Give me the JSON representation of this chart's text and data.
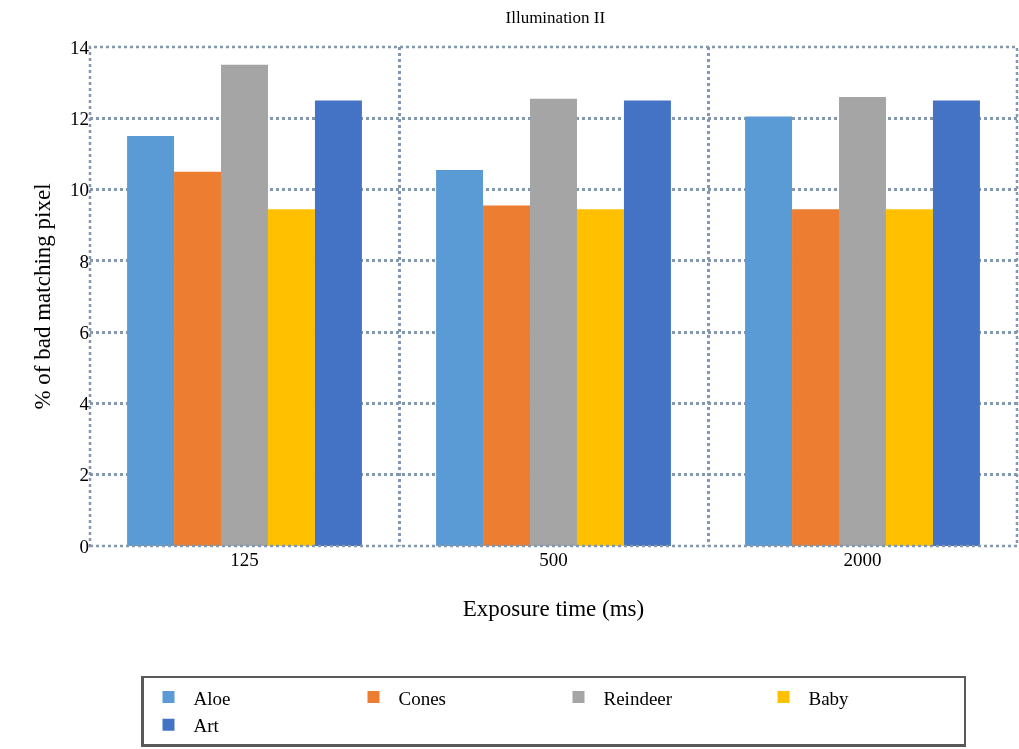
{
  "chart_data": {
    "type": "bar",
    "title": "Illumination II",
    "xlabel": "Exposure time (ms)",
    "ylabel": "% of bad matching pixel",
    "categories": [
      "125",
      "500",
      "2000"
    ],
    "series": [
      {
        "name": "Aloe",
        "color": "#5b9bd5",
        "values": [
          11.5,
          10.55,
          12.05
        ]
      },
      {
        "name": "Cones",
        "color": "#ed7d31",
        "values": [
          10.5,
          9.55,
          9.45
        ]
      },
      {
        "name": "Reindeer",
        "color": "#a5a5a5",
        "values": [
          13.5,
          12.55,
          12.6
        ]
      },
      {
        "name": "Baby",
        "color": "#ffc000",
        "values": [
          9.45,
          9.45,
          9.45
        ]
      },
      {
        "name": "Art",
        "color": "#4472c4",
        "values": [
          12.5,
          12.5,
          12.5
        ]
      }
    ],
    "ylim": [
      0,
      14
    ],
    "yticks": [
      0,
      2,
      4,
      6,
      8,
      10,
      12,
      14
    ],
    "grid": true,
    "legend": "bottom"
  }
}
